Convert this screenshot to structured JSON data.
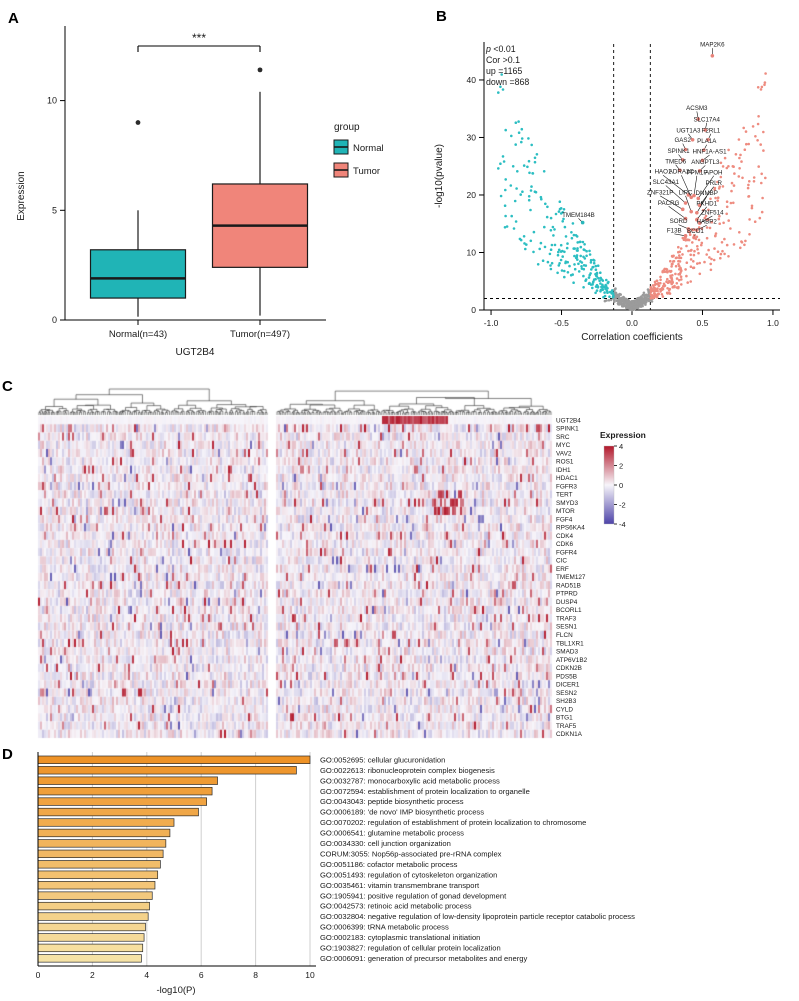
{
  "panels": {
    "a": {
      "label": "A"
    },
    "b": {
      "label": "B"
    },
    "c": {
      "label": "C"
    },
    "d": {
      "label": "D"
    }
  },
  "chart_data": [
    {
      "id": "boxplot",
      "type": "box",
      "title": "",
      "xlabel": "UGT2B4",
      "ylabel": "Expression",
      "ylim": [
        0,
        13.4
      ],
      "yticks": [
        0,
        5,
        10
      ],
      "significance": "***",
      "legend": {
        "title": "group",
        "entries": [
          {
            "label": "Normal",
            "color": "#20b4b6"
          },
          {
            "label": "Tumor",
            "color": "#f0857a"
          }
        ]
      },
      "groups": [
        {
          "label": "Normal(n=43)",
          "color": "#20b4b6",
          "q1": 1.0,
          "median": 1.9,
          "q3": 3.2,
          "whisker_low": 0.15,
          "whisker_high": 5.0,
          "outliers": [
            9.0
          ]
        },
        {
          "label": "Tumor(n=497)",
          "color": "#f0857a",
          "q1": 2.4,
          "median": 4.3,
          "q3": 6.2,
          "whisker_low": 0.2,
          "whisker_high": 10.4,
          "outliers": [
            11.4
          ]
        }
      ]
    },
    {
      "id": "volcano",
      "type": "scatter",
      "xlabel": "Correlation coefficients",
      "ylabel": "-log10(pvalue)",
      "xlim": [
        -1.05,
        1.05
      ],
      "ylim": [
        0,
        46.6
      ],
      "xticks": [
        "-1.0",
        "-0.5",
        "0.0",
        "0.5",
        "1.0"
      ],
      "yticks": [
        0,
        10,
        20,
        30,
        40
      ],
      "vline_x": [
        -0.13,
        0.13
      ],
      "hline_y": 2,
      "stats_text": [
        "p <0.01",
        "Cor >0.1",
        "up =1165",
        "down =868"
      ],
      "colors": {
        "up": "#ee8c80",
        "down": "#2cbec2",
        "ns": "#9b9b9b",
        "label_up": "#e8837a",
        "label_down": "#2ab7bb"
      },
      "labeled_genes": [
        {
          "name": "MAP2K6",
          "dir": "up",
          "lx": 0.57,
          "ly": 45.8,
          "x": 0.57,
          "y": 44.2
        },
        {
          "name": "ACSM3",
          "dir": "up",
          "lx": 0.46,
          "ly": 34.8,
          "x": 0.47,
          "y": 33.2
        },
        {
          "name": "SLC17A4",
          "dir": "up",
          "lx": 0.53,
          "ly": 32.8,
          "x": 0.52,
          "y": 31.3
        },
        {
          "name": "UGT1A3",
          "dir": "up",
          "lx": 0.4,
          "ly": 30.9,
          "x": 0.43,
          "y": 29.6
        },
        {
          "name": "F2RL1",
          "dir": "up",
          "lx": 0.56,
          "ly": 30.9,
          "x": 0.54,
          "y": 29.6
        },
        {
          "name": "GAS2",
          "dir": "up",
          "lx": 0.36,
          "ly": 29.2,
          "x": 0.38,
          "y": 27.9
        },
        {
          "name": "PLA1A",
          "dir": "up",
          "lx": 0.53,
          "ly": 29.0,
          "x": 0.51,
          "y": 27.8
        },
        {
          "name": "SPINK1",
          "dir": "up",
          "lx": 0.33,
          "ly": 27.3,
          "x": 0.36,
          "y": 26.1
        },
        {
          "name": "HNF1A-AS1",
          "dir": "up",
          "lx": 0.55,
          "ly": 27.2,
          "x": 0.5,
          "y": 26.0
        },
        {
          "name": "TMED6",
          "dir": "up",
          "lx": 0.31,
          "ly": 25.5,
          "x": 0.34,
          "y": 24.3
        },
        {
          "name": "ANGPTL3",
          "dir": "up",
          "lx": 0.52,
          "ly": 25.4,
          "x": 0.48,
          "y": 24.2
        },
        {
          "name": "HAO1",
          "dir": "up",
          "lx": 0.22,
          "ly": 23.7,
          "x": 0.4,
          "y": 20.0
        },
        {
          "name": "ADRA2C",
          "dir": "up",
          "lx": 0.35,
          "ly": 23.7,
          "x": 0.42,
          "y": 19.6
        },
        {
          "name": "PPM1F",
          "dir": "up",
          "lx": 0.46,
          "ly": 23.6,
          "x": 0.44,
          "y": 19.9
        },
        {
          "name": "APOH",
          "dir": "up",
          "lx": 0.58,
          "ly": 23.6,
          "x": 0.47,
          "y": 19.4
        },
        {
          "name": "SLC43A1",
          "dir": "up",
          "lx": 0.24,
          "ly": 21.9,
          "x": 0.38,
          "y": 18.6
        },
        {
          "name": "PRLR",
          "dir": "up",
          "lx": 0.58,
          "ly": 21.7,
          "x": 0.48,
          "y": 18.2
        },
        {
          "name": "ZNF321P",
          "dir": "up",
          "lx": 0.2,
          "ly": 20.1,
          "x": 0.36,
          "y": 17.5
        },
        {
          "name": "LIPC",
          "dir": "up",
          "lx": 0.38,
          "ly": 20.1,
          "x": 0.42,
          "y": 17.1
        },
        {
          "name": "DNMBP",
          "dir": "up",
          "lx": 0.53,
          "ly": 20.0,
          "x": 0.46,
          "y": 16.9
        },
        {
          "name": "PACRG",
          "dir": "up",
          "lx": 0.26,
          "ly": 18.3,
          "x": 0.38,
          "y": 15.9
        },
        {
          "name": "PKHD1",
          "dir": "up",
          "lx": 0.53,
          "ly": 18.2,
          "x": 0.46,
          "y": 15.7
        },
        {
          "name": "ZNF514",
          "dir": "up",
          "lx": 0.57,
          "ly": 16.6,
          "x": 0.48,
          "y": 15.1
        },
        {
          "name": "SORD",
          "dir": "up",
          "lx": 0.33,
          "ly": 15.1,
          "x": 0.4,
          "y": 14.1
        },
        {
          "name": "HABP2",
          "dir": "up",
          "lx": 0.53,
          "ly": 15.0,
          "x": 0.46,
          "y": 13.9
        },
        {
          "name": "F13B",
          "dir": "up",
          "lx": 0.3,
          "ly": 13.5,
          "x": 0.38,
          "y": 12.9
        },
        {
          "name": "BCO1",
          "dir": "up",
          "lx": 0.45,
          "ly": 13.4,
          "x": 0.44,
          "y": 12.6
        },
        {
          "name": "TMEM184B",
          "dir": "down",
          "lx": -0.38,
          "ly": 16.2,
          "x": -0.35,
          "y": 15.2
        }
      ]
    },
    {
      "id": "heatmap",
      "type": "heatmap",
      "genes": [
        "UGT2B4",
        "SPINK1",
        "SRC",
        "MYC",
        "VAV2",
        "ROS1",
        "IDH1",
        "HDAC1",
        "FGFR3",
        "TERT",
        "SMYD3",
        "MTOR",
        "FGF4",
        "RPS6KA4",
        "CDK4",
        "CDK6",
        "FGFR4",
        "CIC",
        "ERF",
        "TMEM127",
        "RAD51B",
        "PTPRD",
        "DUSP4",
        "BCORL1",
        "TRAF3",
        "SESN1",
        "FLCN",
        "TBL1XR1",
        "SMAD3",
        "ATP6V1B2",
        "CDKN2B",
        "PDS5B",
        "DICER1",
        "SESN2",
        "SH2B3",
        "CYLD",
        "BTG1",
        "TRAF5",
        "CDKN1A"
      ],
      "legend": {
        "title": "Expression",
        "ticks": [
          4,
          2,
          0,
          -2,
          -4
        ]
      },
      "colors": {
        "high": "#b2182b",
        "mid": "#f7f5fa",
        "low": "#4d43a8"
      }
    },
    {
      "id": "go_bars",
      "type": "bar",
      "xlabel": "-log10(P)",
      "xticks": [
        0,
        2,
        4,
        6,
        8,
        10
      ],
      "bar_colors": {
        "start": "#ee9226",
        "end": "#f6e3a6"
      },
      "terms": [
        {
          "label": "GO:0052695: cellular glucuronidation",
          "value": 10.0
        },
        {
          "label": "GO:0022613: ribonucleoprotein complex biogenesis",
          "value": 9.5
        },
        {
          "label": "GO:0032787: monocarboxylic acid metabolic process",
          "value": 6.6
        },
        {
          "label": "GO:0072594: establishment of protein localization to organelle",
          "value": 6.4
        },
        {
          "label": "GO:0043043: peptide biosynthetic process",
          "value": 6.2
        },
        {
          "label": "GO:0006189: 'de novo' IMP biosynthetic process",
          "value": 5.9
        },
        {
          "label": "GO:0070202: regulation of establishment of protein localization to chromosome",
          "value": 5.0
        },
        {
          "label": "GO:0006541: glutamine metabolic process",
          "value": 4.85
        },
        {
          "label": "GO:0034330: cell junction organization",
          "value": 4.7
        },
        {
          "label": "CORUM:3055: Nop56p-associated pre-rRNA complex",
          "value": 4.6
        },
        {
          "label": "GO:0051186: cofactor metabolic process",
          "value": 4.5
        },
        {
          "label": "GO:0051493: regulation of cytoskeleton organization",
          "value": 4.4
        },
        {
          "label": "GO:0035461: vitamin transmembrane transport",
          "value": 4.3
        },
        {
          "label": "GO:1905941: positive regulation of gonad development",
          "value": 4.2
        },
        {
          "label": "GO:0042573: retinoic acid metabolic process",
          "value": 4.1
        },
        {
          "label": "GO:0032804: negative regulation of low-density lipoprotein particle receptor catabolic process",
          "value": 4.05
        },
        {
          "label": "GO:0006399: tRNA metabolic process",
          "value": 3.95
        },
        {
          "label": "GO:0002183: cytoplasmic translational initiation",
          "value": 3.9
        },
        {
          "label": "GO:1903827: regulation of cellular protein localization",
          "value": 3.85
        },
        {
          "label": "GO:0006091: generation of precursor metabolites and energy",
          "value": 3.8
        }
      ]
    }
  ]
}
